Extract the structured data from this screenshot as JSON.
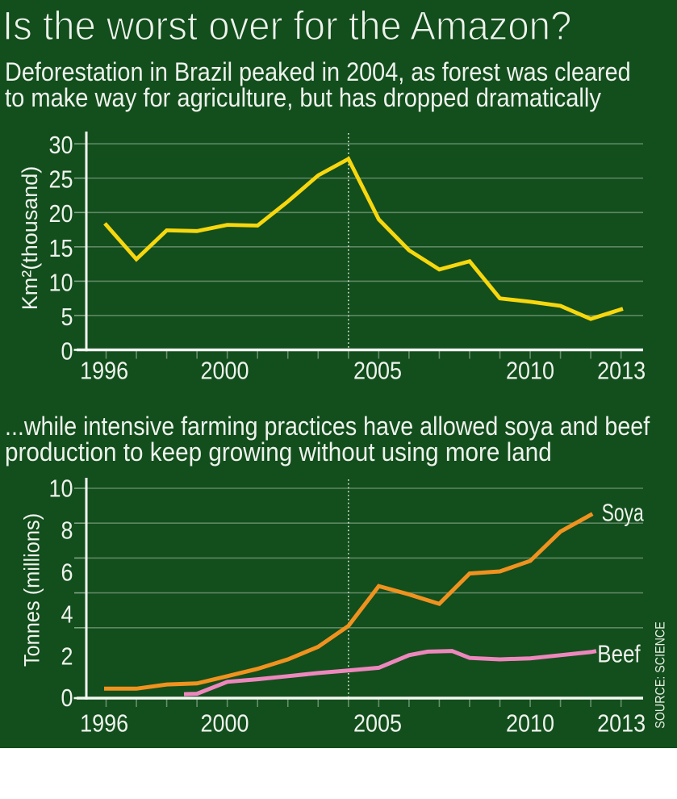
{
  "header": {
    "title": "Is the worst over for the Amazon?",
    "subtitle_lines": [
      "Deforestation in Brazil peaked in 2004, as forest was cleared",
      "to make way for agriculture, but has dropped dramatically"
    ]
  },
  "section2": {
    "subtitle_lines": [
      "...while intensive farming practices have allowed soya and beef",
      "production to keep growing without using more land"
    ]
  },
  "source_note": "SOURCE: SCIENCE",
  "colors": {
    "background": "#134e1d",
    "text": "#eef3ec",
    "deforestation_line": "#f7d70e",
    "soya_line": "#f0921f",
    "beef_line": "#ee87bd",
    "gridline": "#dcead8",
    "axis": "#f4f8f2"
  },
  "chart_data": [
    {
      "type": "line",
      "ylabel": "Km²(thousand)",
      "yticks": [
        0,
        5,
        10,
        15,
        20,
        25,
        30
      ],
      "ylim": [
        0,
        30
      ],
      "xlim": [
        1996,
        2013
      ],
      "xtick_years": [
        1996,
        1997,
        1998,
        1999,
        2000,
        2001,
        2002,
        2003,
        2004,
        2005,
        2006,
        2007,
        2008,
        2009,
        2010,
        2011,
        2012,
        2013
      ],
      "xtick_labels": [
        1996,
        2000,
        2005,
        2010,
        2013
      ],
      "marker_year": 2004,
      "grid": true,
      "series": [
        {
          "name": "Deforestation",
          "color_key": "deforestation_line",
          "x": [
            1996,
            1997,
            1998,
            1999,
            2000,
            2001,
            2002,
            2003,
            2004,
            2005,
            2006,
            2007,
            2008,
            2009,
            2010,
            2011,
            2012,
            2013
          ],
          "values": [
            18.2,
            13.2,
            17.4,
            17.3,
            18.2,
            18.1,
            21.6,
            25.4,
            27.8,
            19.0,
            14.5,
            11.7,
            12.9,
            7.5,
            7.0,
            6.4,
            4.5,
            5.9
          ]
        }
      ]
    },
    {
      "type": "line",
      "ylabel": "Tonnes (millions)",
      "yticks": [
        0,
        2,
        4,
        6,
        8,
        10
      ],
      "ylim": [
        0,
        10
      ],
      "xlim": [
        1996,
        2013
      ],
      "xtick_years": [
        1996,
        1997,
        1998,
        1999,
        2000,
        2001,
        2002,
        2003,
        2004,
        2005,
        2006,
        2007,
        2008,
        2009,
        2010,
        2011,
        2012,
        2013
      ],
      "xtick_labels": [
        1996,
        2000,
        2005,
        2010,
        2013
      ],
      "marker_year": 2004,
      "grid": true,
      "series": [
        {
          "name": "Soya",
          "color_key": "soya_line",
          "x": [
            1996,
            1997,
            1998,
            1999,
            2000,
            2001,
            2002,
            2003,
            2004,
            2005,
            2006,
            2007,
            2008,
            2009,
            2010,
            2011,
            2012
          ],
          "values": [
            0.45,
            0.45,
            0.65,
            0.7,
            1.05,
            1.4,
            1.85,
            2.45,
            3.45,
            5.35,
            4.95,
            4.5,
            5.95,
            6.05,
            6.55,
            7.95,
            8.75
          ]
        },
        {
          "name": "Beef",
          "color_key": "beef_line",
          "x": [
            1999,
            2000,
            2001,
            2002,
            2003,
            2004,
            2005,
            2006,
            2007,
            2008,
            2009,
            2010,
            2011,
            2012
          ],
          "values": [
            0.21,
            0.78,
            0.9,
            1.05,
            1.2,
            1.32,
            1.45,
            2.05,
            2.25,
            1.92,
            1.85,
            1.9,
            2.05,
            2.2
          ]
        }
      ]
    }
  ]
}
